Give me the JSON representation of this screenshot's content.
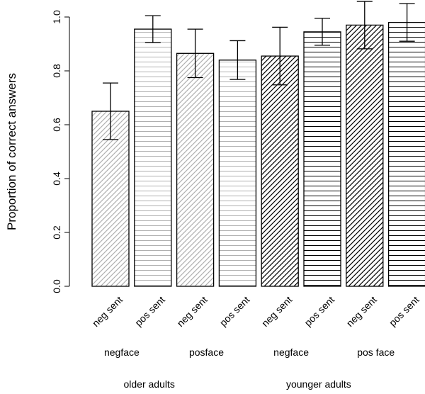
{
  "chart_data": {
    "type": "bar",
    "ylabel": "Proportion of correct answers",
    "categories": [
      "neg sent",
      "pos sent",
      "neg sent",
      "pos sent",
      "neg sent",
      "pos sent",
      "neg sent",
      "pos sent"
    ],
    "values": [
      0.65,
      0.955,
      0.865,
      0.84,
      0.855,
      0.945,
      0.97,
      0.98
    ],
    "errors": [
      0.105,
      0.05,
      0.09,
      0.072,
      0.107,
      0.05,
      0.088,
      0.07
    ],
    "colors": [
      "#b0b0b0",
      "#b0b0b0",
      "#b0b0b0",
      "#b0b0b0",
      "#000000",
      "#000000",
      "#000000",
      "#000000"
    ],
    "patterns": [
      "diagonal",
      "horizontal",
      "diagonal",
      "horizontal",
      "diagonal",
      "horizontal",
      "diagonal",
      "horizontal"
    ],
    "groups": [
      "negface",
      "posface",
      "negface",
      "pos face"
    ],
    "subgroups": [
      "older adults",
      "younger adults"
    ],
    "ylim": [
      0,
      1
    ],
    "yticks": [
      {
        "value": 0,
        "label": "0.0"
      },
      0.2,
      0.4,
      0.6,
      0.8,
      {
        "value": 1,
        "label": "1.0"
      }
    ]
  }
}
